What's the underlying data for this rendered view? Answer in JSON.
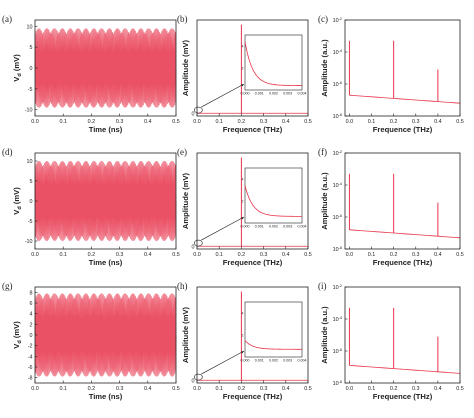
{
  "figure": {
    "rows": [
      {
        "time_panel": {
          "label": "(a)",
          "chart_data": {
            "type": "line",
            "xlabel": "Time (ns)",
            "ylabel": "V_d (mV)",
            "xlim": [
              0.0,
              0.5
            ],
            "ylim": [
              -11.5,
              11.5
            ],
            "xticks": [
              "0.0",
              "0.1",
              "0.2",
              "0.3",
              "0.4",
              "0.5"
            ],
            "yticks": [
              "10",
              "5",
              "0",
              "-5",
              "-10"
            ],
            "ytick_values": [
              10,
              5,
              0,
              -5,
              -10
            ],
            "signal": {
              "amplitude_mv": 9.5,
              "frequency_thz": 0.2,
              "color": "#e8334a"
            }
          }
        },
        "spectrum_panel": {
          "label": "(b)",
          "chart_data": {
            "type": "line",
            "xlabel": "Frequence (THz)",
            "ylabel": "Amplitude (mV)",
            "xlim": [
              0.0,
              0.5
            ],
            "ylim": [
              -0.3,
              10.2
            ],
            "xticks": [
              "0.0",
              "0.1",
              "0.2",
              "0.3",
              "0.4",
              "0.5"
            ],
            "yticks": [
              "0"
            ],
            "ytick_values": [
              0
            ],
            "peak": {
              "x": 0.2,
              "y": 9.7
            },
            "inset": {
              "xlim": [
                0.0,
                0.004
              ],
              "ylim": [
                0,
                5
              ],
              "xticks": [
                "0.000",
                "0.001",
                "0.002",
                "0.003",
                "0.004"
              ],
              "yticks": [
                "4",
                "2"
              ],
              "ytick_values": [
                4,
                2
              ],
              "curve_start": 4.4,
              "curve_floor": 0.4
            }
          }
        },
        "log_panel": {
          "label": "(c)",
          "chart_data": {
            "type": "line",
            "xlabel": "Frequence (THz)",
            "ylabel": "Amplitude (a.u.)",
            "scale": "log",
            "xlim": [
              -0.02,
              0.5
            ],
            "ylim_exp": [
              -8,
              -2
            ],
            "xticks": [
              "0.0",
              "0.1",
              "0.2",
              "0.3",
              "0.4",
              "0.5"
            ],
            "ytick_exps": [
              -2,
              -4,
              -6,
              -8
            ],
            "peaks": [
              {
                "x": 0.0,
                "y_exp": -3.3
              },
              {
                "x": 0.2,
                "y_exp": -3.3
              },
              {
                "x": 0.4,
                "y_exp": -5.1
              }
            ],
            "baseline_exp": [
              -6.7,
              -7.2
            ]
          }
        }
      },
      {
        "time_panel": {
          "label": "(d)",
          "chart_data": {
            "type": "line",
            "xlabel": "Time (ns)",
            "ylabel": "V_d (mV)",
            "xlim": [
              0.0,
              0.5
            ],
            "ylim": [
              -12,
              12
            ],
            "xticks": [
              "0.0",
              "0.1",
              "0.2",
              "0.3",
              "0.4",
              "0.5"
            ],
            "yticks": [
              "10",
              "5",
              "0",
              "-5",
              "-10"
            ],
            "ytick_values": [
              10,
              5,
              0,
              -5,
              -10
            ],
            "signal": {
              "amplitude_mv": 10.0,
              "frequency_thz": 0.2,
              "color": "#e8334a"
            }
          }
        },
        "spectrum_panel": {
          "label": "(e)",
          "chart_data": {
            "type": "line",
            "xlabel": "Frequence (THz)",
            "ylabel": "Amplitude (mV)",
            "xlim": [
              0.0,
              0.5
            ],
            "ylim": [
              -0.3,
              10.2
            ],
            "xticks": [
              "0.0",
              "0.1",
              "0.2",
              "0.3",
              "0.4",
              "0.5"
            ],
            "yticks": [
              "0"
            ],
            "ytick_values": [
              0
            ],
            "peak": {
              "x": 0.2,
              "y": 9.7
            },
            "inset": {
              "xlim": [
                0.0,
                0.004
              ],
              "ylim": [
                0,
                5
              ],
              "xticks": [
                "0.000",
                "0.001",
                "0.002",
                "0.003",
                "0.004"
              ],
              "yticks": [
                "4",
                "2"
              ],
              "ytick_values": [
                4,
                2
              ],
              "curve_start": 3.4,
              "curve_floor": 0.6
            }
          }
        },
        "log_panel": {
          "label": "(f)",
          "chart_data": {
            "type": "line",
            "xlabel": "Frequence (THz)",
            "ylabel": "Amplitude (a.u.)",
            "scale": "log",
            "xlim": [
              -0.02,
              0.5
            ],
            "ylim_exp": [
              -8,
              -2
            ],
            "xticks": [
              "0.0",
              "0.1",
              "0.2",
              "0.3",
              "0.4",
              "0.5"
            ],
            "ytick_exps": [
              -2,
              -4,
              -6,
              -8
            ],
            "peaks": [
              {
                "x": 0.0,
                "y_exp": -3.3
              },
              {
                "x": 0.2,
                "y_exp": -3.3
              },
              {
                "x": 0.4,
                "y_exp": -5.1
              }
            ],
            "baseline_exp": [
              -6.8,
              -7.3
            ]
          }
        }
      },
      {
        "time_panel": {
          "label": "(g)",
          "chart_data": {
            "type": "line",
            "xlabel": "Time (ns)",
            "ylabel": "V_d (mV)",
            "xlim": [
              0.0,
              0.5
            ],
            "ylim": [
              -9,
              9
            ],
            "xticks": [
              "0.0",
              "0.1",
              "0.2",
              "0.3",
              "0.4",
              "0.5"
            ],
            "yticks": [
              "8",
              "6",
              "4",
              "2",
              "0",
              "-2",
              "-4",
              "-6",
              "-8"
            ],
            "ytick_values": [
              8,
              6,
              4,
              2,
              0,
              -2,
              -4,
              -6,
              -8
            ],
            "signal": {
              "amplitude_mv": 7.8,
              "frequency_thz": 0.2,
              "color": "#e8334a"
            }
          }
        },
        "spectrum_panel": {
          "label": "(h)",
          "chart_data": {
            "type": "line",
            "xlabel": "Frequence (THz)",
            "ylabel": "Amplitude (mV)",
            "xlim": [
              0.0,
              0.5
            ],
            "ylim": [
              -0.3,
              10.2
            ],
            "xticks": [
              "0.0",
              "0.1",
              "0.2",
              "0.3",
              "0.4",
              "0.5"
            ],
            "yticks": [
              "0"
            ],
            "ytick_values": [
              0
            ],
            "peak": {
              "x": 0.2,
              "y": 9.7
            },
            "inset": {
              "xlim": [
                0.0,
                0.004
              ],
              "ylim": [
                0,
                5
              ],
              "xticks": [
                "0.000",
                "0.001",
                "0.002",
                "0.003",
                "0.004"
              ],
              "yticks": [
                "4",
                "2"
              ],
              "ytick_values": [
                4,
                2
              ],
              "curve_start": 1.5,
              "curve_floor": 0.7
            }
          }
        },
        "log_panel": {
          "label": "(i)",
          "chart_data": {
            "type": "line",
            "xlabel": "Frequence (THz)",
            "ylabel": "Amplitude (a.u.)",
            "scale": "log",
            "xlim": [
              -0.02,
              0.5
            ],
            "ylim_exp": [
              -8,
              -2
            ],
            "xticks": [
              "0.0",
              "0.1",
              "0.2",
              "0.3",
              "0.4",
              "0.5"
            ],
            "ytick_exps": [
              -2,
              -4,
              -6,
              -8
            ],
            "peaks": [
              {
                "x": 0.0,
                "y_exp": -3.3
              },
              {
                "x": 0.2,
                "y_exp": -3.3
              },
              {
                "x": 0.4,
                "y_exp": -5.1
              }
            ],
            "baseline_exp": [
              -6.9,
              -7.4
            ]
          }
        }
      }
    ],
    "colors": {
      "signal": "#e8334a",
      "axis": "#222222"
    }
  }
}
